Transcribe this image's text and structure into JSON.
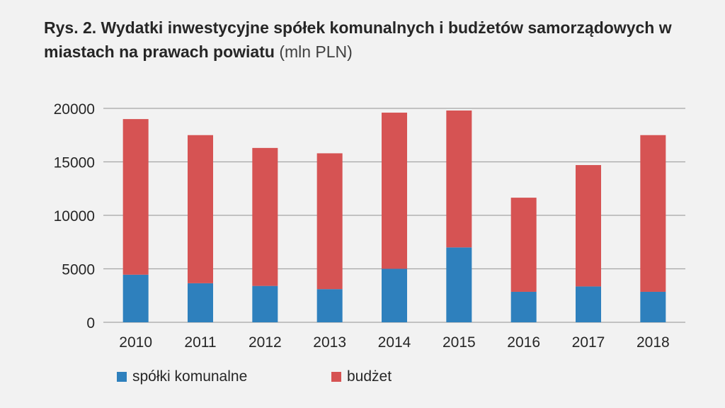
{
  "title": {
    "bold": "Rys. 2. Wydatki inwestycyjne spółek komunalnych i budżetów samorządowych w miastach na prawach powiatu",
    "unit": "(mln PLN)"
  },
  "colors": {
    "series_1": "#2e80bd",
    "series_2": "#d65353",
    "grid": "#a6a6a6",
    "text": "#262626"
  },
  "chart_data": {
    "type": "bar",
    "stacked": true,
    "categories": [
      "2010",
      "2011",
      "2012",
      "2013",
      "2014",
      "2015",
      "2016",
      "2017",
      "2018"
    ],
    "series": [
      {
        "name": "spółki komunalne",
        "values": [
          4450,
          3650,
          3400,
          3100,
          5000,
          7000,
          2850,
          3350,
          2850
        ]
      },
      {
        "name": "budżet",
        "values": [
          14550,
          13850,
          12900,
          12700,
          14600,
          12800,
          8800,
          11350,
          14650
        ]
      }
    ],
    "yticks": [
      "0",
      "5000",
      "10000",
      "15000",
      "20000"
    ],
    "ylim": [
      0,
      20000
    ],
    "grid": true,
    "legend_position": "bottom"
  }
}
